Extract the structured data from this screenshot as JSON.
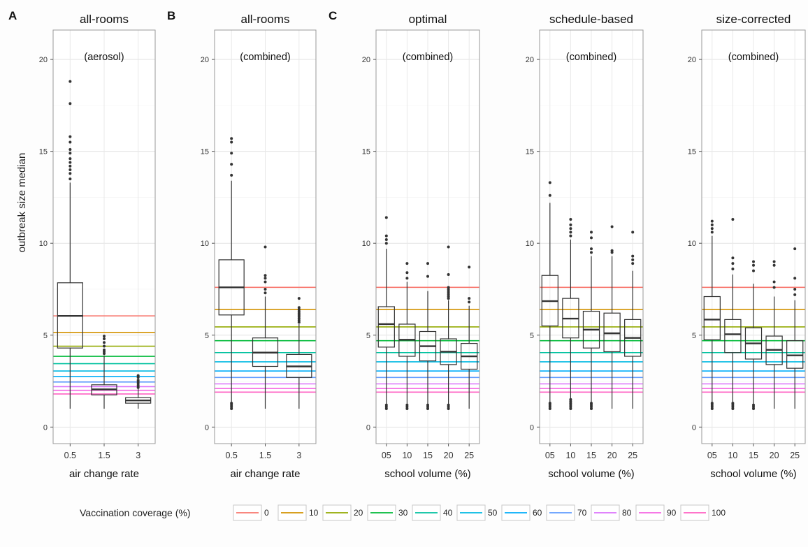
{
  "ylabel": "outbreak size median",
  "y_ticks": [
    "0",
    "5",
    "10",
    "15",
    "20"
  ],
  "legend": {
    "title": "Vaccination coverage (%)",
    "items": [
      {
        "label": "0",
        "color": "#f8766d"
      },
      {
        "label": "10",
        "color": "#d39200"
      },
      {
        "label": "20",
        "color": "#93aa00"
      },
      {
        "label": "30",
        "color": "#00ba38"
      },
      {
        "label": "40",
        "color": "#00c19f"
      },
      {
        "label": "50",
        "color": "#00b9e3"
      },
      {
        "label": "60",
        "color": "#00adfa"
      },
      {
        "label": "70",
        "color": "#619cff"
      },
      {
        "label": "80",
        "color": "#db72fb"
      },
      {
        "label": "90",
        "color": "#f564e3"
      },
      {
        "label": "100",
        "color": "#ff61c3"
      }
    ]
  },
  "chart_data": [
    {
      "type": "box",
      "panel_letter": "A",
      "title": "all-rooms",
      "subtitle": "(aerosol)",
      "xlabel": "air change rate",
      "ylabel": "outbreak size median",
      "ylim": [
        -0.9,
        21.6
      ],
      "categories": [
        "0.5",
        "1.5",
        "3"
      ],
      "boxes": [
        {
          "q1": 4.3,
          "median": 6.05,
          "q3": 7.85,
          "whisker_low": 1.0,
          "whisker_high": 13.3,
          "outliers": [
            13.5,
            13.8,
            14.0,
            14.2,
            14.4,
            14.6,
            14.9,
            15.1,
            15.5,
            15.8,
            17.6,
            18.8
          ]
        },
        {
          "q1": 1.75,
          "median": 2.05,
          "q3": 2.3,
          "whisker_low": 1.0,
          "whisker_high": 3.9,
          "outliers": [
            4.0,
            4.1,
            4.2,
            4.4,
            4.6,
            4.8,
            4.95
          ]
        },
        {
          "q1": 1.3,
          "median": 1.45,
          "q3": 1.6,
          "whisker_low": 1.0,
          "whisker_high": 2.1,
          "outliers": [
            2.15,
            2.25,
            2.35,
            2.45,
            2.55,
            2.7,
            2.8
          ]
        }
      ],
      "reference_lines": [
        6.05,
        5.15,
        4.4,
        3.85,
        3.45,
        3.05,
        2.75,
        2.45,
        2.2,
        2.0,
        1.8
      ]
    },
    {
      "type": "box",
      "panel_letter": "B",
      "title": "all-rooms",
      "subtitle": "(combined)",
      "xlabel": "air change rate",
      "ylabel": "outbreak size median",
      "ylim": [
        -0.9,
        21.6
      ],
      "categories": [
        "0.5",
        "1.5",
        "3"
      ],
      "boxes": [
        {
          "q1": 6.1,
          "median": 7.6,
          "q3": 9.1,
          "whisker_low": 1.0,
          "whisker_high": 13.4,
          "outliers": [
            1.0,
            1.1,
            1.2,
            1.3,
            13.7,
            14.3,
            14.9,
            15.5,
            15.7
          ]
        },
        {
          "q1": 3.3,
          "median": 4.05,
          "q3": 4.85,
          "whisker_low": 1.0,
          "whisker_high": 7.1,
          "outliers": [
            7.3,
            7.5,
            7.9,
            8.1,
            8.25,
            9.8
          ]
        },
        {
          "q1": 2.7,
          "median": 3.3,
          "q3": 3.95,
          "whisker_low": 1.0,
          "whisker_high": 5.6,
          "outliers": [
            5.7,
            5.8,
            5.9,
            6.0,
            6.1,
            6.2,
            6.3,
            6.4,
            6.5,
            7.0
          ]
        }
      ],
      "reference_lines": [
        7.6,
        6.4,
        5.45,
        4.7,
        4.05,
        3.55,
        3.05,
        2.7,
        2.35,
        2.1,
        1.9
      ]
    },
    {
      "type": "box",
      "panel_letter": "C",
      "title": "optimal",
      "subtitle": "(combined)",
      "xlabel": "school volume (%)",
      "ylabel": "outbreak size median",
      "ylim": [
        -0.9,
        21.6
      ],
      "categories": [
        "05",
        "10",
        "15",
        "20",
        "25"
      ],
      "boxes": [
        {
          "q1": 4.35,
          "median": 5.6,
          "q3": 6.55,
          "whisker_low": 1.0,
          "whisker_high": 9.7,
          "outliers": [
            1.0,
            1.1,
            1.2,
            10.0,
            10.2,
            10.4,
            11.4
          ]
        },
        {
          "q1": 3.85,
          "median": 4.75,
          "q3": 5.6,
          "whisker_low": 1.0,
          "whisker_high": 7.9,
          "outliers": [
            1.0,
            1.1,
            1.2,
            8.1,
            8.4,
            8.9
          ]
        },
        {
          "q1": 3.6,
          "median": 4.4,
          "q3": 5.2,
          "whisker_low": 1.0,
          "whisker_high": 7.4,
          "outliers": [
            1.0,
            1.1,
            1.2,
            8.2,
            8.9
          ]
        },
        {
          "q1": 3.4,
          "median": 4.1,
          "q3": 4.8,
          "whisker_low": 1.0,
          "whisker_high": 6.9,
          "outliers": [
            1.0,
            1.1,
            1.2,
            7.0,
            7.1,
            7.2,
            7.3,
            7.4,
            7.5,
            7.6,
            8.3,
            9.8
          ]
        },
        {
          "q1": 3.15,
          "median": 3.85,
          "q3": 4.55,
          "whisker_low": 1.0,
          "whisker_high": 6.6,
          "outliers": [
            6.8,
            7.0,
            8.7
          ]
        }
      ],
      "reference_lines": [
        7.6,
        6.4,
        5.45,
        4.7,
        4.05,
        3.55,
        3.05,
        2.7,
        2.35,
        2.1,
        1.9
      ]
    },
    {
      "type": "box",
      "title": "schedule-based",
      "subtitle": "(combined)",
      "xlabel": "school volume (%)",
      "ylabel": "outbreak size median",
      "ylim": [
        -0.9,
        21.6
      ],
      "categories": [
        "05",
        "10",
        "15",
        "20",
        "25"
      ],
      "boxes": [
        {
          "q1": 5.5,
          "median": 6.85,
          "q3": 8.25,
          "whisker_low": 1.0,
          "whisker_high": 12.2,
          "outliers": [
            1.0,
            1.1,
            1.2,
            1.3,
            12.6,
            13.3
          ]
        },
        {
          "q1": 4.85,
          "median": 5.9,
          "q3": 7.0,
          "whisker_low": 1.0,
          "whisker_high": 10.2,
          "outliers": [
            1.0,
            1.1,
            1.2,
            1.3,
            1.4,
            1.5,
            10.4,
            10.6,
            10.8,
            11.0,
            11.3
          ]
        },
        {
          "q1": 4.3,
          "median": 5.3,
          "q3": 6.3,
          "whisker_low": 1.0,
          "whisker_high": 9.3,
          "outliers": [
            1.0,
            1.1,
            1.2,
            1.3,
            9.5,
            9.7,
            10.3,
            10.6
          ]
        },
        {
          "q1": 4.1,
          "median": 5.1,
          "q3": 6.2,
          "whisker_low": 1.0,
          "whisker_high": 9.3,
          "outliers": [
            9.5,
            9.6,
            10.9
          ]
        },
        {
          "q1": 3.85,
          "median": 4.85,
          "q3": 5.85,
          "whisker_low": 1.0,
          "whisker_high": 8.5,
          "outliers": [
            8.9,
            9.1,
            9.3,
            10.6
          ]
        }
      ],
      "reference_lines": [
        7.6,
        6.4,
        5.45,
        4.7,
        4.05,
        3.55,
        3.05,
        2.7,
        2.35,
        2.1,
        1.9
      ]
    },
    {
      "type": "box",
      "title": "size-corrected",
      "subtitle": "(combined)",
      "xlabel": "school volume (%)",
      "ylabel": "outbreak size median",
      "ylim": [
        -0.9,
        21.6
      ],
      "categories": [
        "05",
        "10",
        "15",
        "20",
        "25"
      ],
      "boxes": [
        {
          "q1": 4.75,
          "median": 5.85,
          "q3": 7.1,
          "whisker_low": 1.0,
          "whisker_high": 10.4,
          "outliers": [
            1.0,
            1.1,
            1.2,
            1.3,
            10.6,
            10.8,
            11.0,
            11.2
          ]
        },
        {
          "q1": 4.05,
          "median": 5.05,
          "q3": 5.85,
          "whisker_low": 1.0,
          "whisker_high": 8.3,
          "outliers": [
            1.0,
            1.1,
            1.2,
            1.3,
            8.6,
            8.9,
            9.2,
            11.3
          ]
        },
        {
          "q1": 3.7,
          "median": 4.55,
          "q3": 5.4,
          "whisker_low": 1.0,
          "whisker_high": 7.8,
          "outliers": [
            1.0,
            1.1,
            1.2,
            8.5,
            8.8,
            9.0
          ]
        },
        {
          "q1": 3.4,
          "median": 4.2,
          "q3": 4.95,
          "whisker_low": 1.0,
          "whisker_high": 7.1,
          "outliers": [
            7.6,
            7.9,
            8.8,
            9.0
          ]
        },
        {
          "q1": 3.2,
          "median": 3.9,
          "q3": 4.7,
          "whisker_low": 1.0,
          "whisker_high": 6.9,
          "outliers": [
            7.2,
            7.5,
            8.1,
            9.7
          ]
        }
      ],
      "reference_lines": [
        7.6,
        6.4,
        5.45,
        4.7,
        4.05,
        3.55,
        3.05,
        2.7,
        2.35,
        2.1,
        1.9
      ]
    }
  ]
}
